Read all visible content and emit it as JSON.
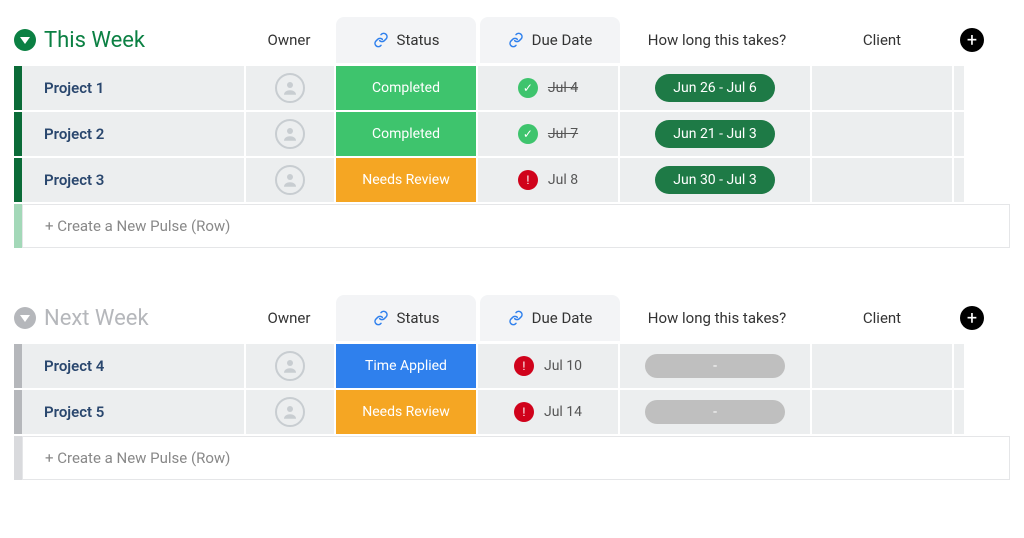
{
  "columns": {
    "owner": "Owner",
    "status": "Status",
    "dueDate": "Due Date",
    "howLong": "How long this takes?",
    "client": "Client"
  },
  "createRowText": "+ Create a New Pulse (Row)",
  "colors": {
    "groupActive": "#0b8043",
    "groupActiveBar": "#0b6b38",
    "groupInactive": "#b5b7bb",
    "groupInactiveBar": "#b5b7bb",
    "createBarActive": "#a3d8b8",
    "createBarInactive": "#d9dadd",
    "statusCompleted": "#3ec46d",
    "statusNeedsReview": "#f5a623",
    "statusTimeApplied": "#2f80ed",
    "dueOk": "#3ec46d",
    "dueWarn": "#d0021b",
    "pillGreen": "#1e7a46"
  },
  "groups": [
    {
      "title": "This Week",
      "active": true,
      "rows": [
        {
          "name": "Project 1",
          "status": {
            "label": "Completed",
            "colorKey": "statusCompleted"
          },
          "due": {
            "label": "Jul 4",
            "iconKey": "dueOk",
            "strike": true
          },
          "timeline": {
            "label": "Jun 26 - Jul 6",
            "colorKey": "pillGreen"
          }
        },
        {
          "name": "Project 2",
          "status": {
            "label": "Completed",
            "colorKey": "statusCompleted"
          },
          "due": {
            "label": "Jul 7",
            "iconKey": "dueOk",
            "strike": true
          },
          "timeline": {
            "label": "Jun 21 - Jul 3",
            "colorKey": "pillGreen"
          }
        },
        {
          "name": "Project 3",
          "status": {
            "label": "Needs Review",
            "colorKey": "statusNeedsReview"
          },
          "due": {
            "label": "Jul 8",
            "iconKey": "dueWarn",
            "strike": false
          },
          "timeline": {
            "label": "Jun 30 - Jul 3",
            "colorKey": "pillGreen"
          }
        }
      ]
    },
    {
      "title": "Next Week",
      "active": false,
      "rows": [
        {
          "name": "Project 4",
          "status": {
            "label": "Time Applied",
            "colorKey": "statusTimeApplied"
          },
          "due": {
            "label": "Jul 10",
            "iconKey": "dueWarn",
            "strike": false
          },
          "timeline": {
            "label": "-",
            "empty": true
          }
        },
        {
          "name": "Project 5",
          "status": {
            "label": "Needs Review",
            "colorKey": "statusNeedsReview"
          },
          "due": {
            "label": "Jul 14",
            "iconKey": "dueWarn",
            "strike": false
          },
          "timeline": {
            "label": "-",
            "empty": true
          }
        }
      ]
    }
  ]
}
